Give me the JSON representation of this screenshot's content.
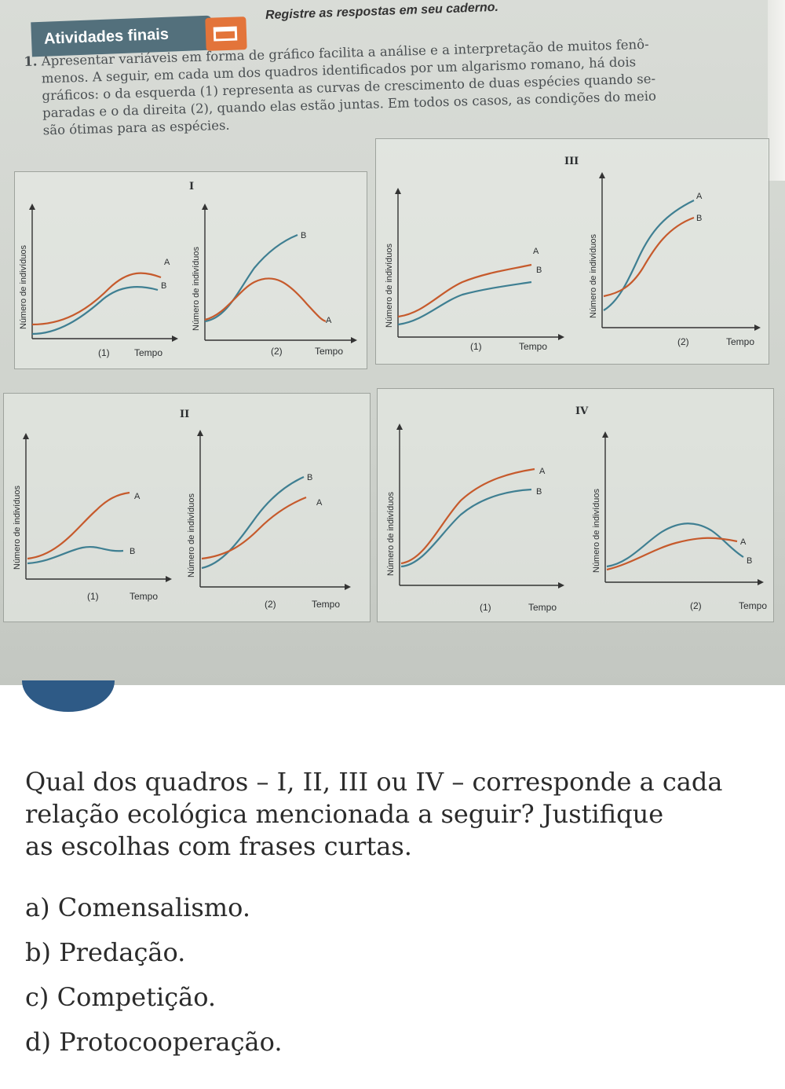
{
  "header": {
    "section_title": "Atividades finais",
    "instruction": "Registre as respostas em seu caderno."
  },
  "exercise": {
    "number": "1.",
    "text_lines": [
      "Apresentar variáveis em forma de gráfico facilita a análise e a interpretação de muitos fenô-",
      "menos. A seguir, em cada um dos quadros identificados por um algarismo romano, há dois",
      "gráficos: o da esquerda (1) representa as curvas de crescimento de duas espécies quando se-",
      "paradas e o da direita (2), quando elas estão juntas. Em todos os casos, as condições do meio",
      "são ótimas para as espécies."
    ]
  },
  "axis_labels": {
    "y": "Número de indivíduos",
    "x": "Tempo"
  },
  "panels": [
    {
      "id": "I",
      "graph1": {
        "label": "(1)",
        "series": [
          "A",
          "B"
        ]
      },
      "graph2": {
        "label": "(2)",
        "series": [
          "B",
          "A"
        ]
      }
    },
    {
      "id": "II",
      "graph1": {
        "label": "(1)",
        "series": [
          "A",
          "B"
        ]
      },
      "graph2": {
        "label": "(2)",
        "series": [
          "B",
          "A"
        ]
      }
    },
    {
      "id": "III",
      "graph1": {
        "label": "(1)",
        "series": [
          "A",
          "B"
        ]
      },
      "graph2": {
        "label": "(2)",
        "series": [
          "A",
          "B"
        ]
      }
    },
    {
      "id": "IV",
      "graph1": {
        "label": "(1)",
        "series": [
          "A",
          "B"
        ]
      },
      "graph2": {
        "label": "(2)",
        "series": [
          "A",
          "B"
        ]
      }
    }
  ],
  "series_colors": {
    "A": "#3f7f92",
    "B": "#c65a2c"
  },
  "question": {
    "lines": [
      "Qual dos quadros – I, II, III ou IV – corresponde a cada",
      "relação ecológica mencionada a seguir? Justifique",
      "as escolhas com frases curtas."
    ],
    "options": [
      "a) Comensalismo.",
      "b) Predação.",
      "c) Competição.",
      "d) Protocooperação."
    ]
  }
}
